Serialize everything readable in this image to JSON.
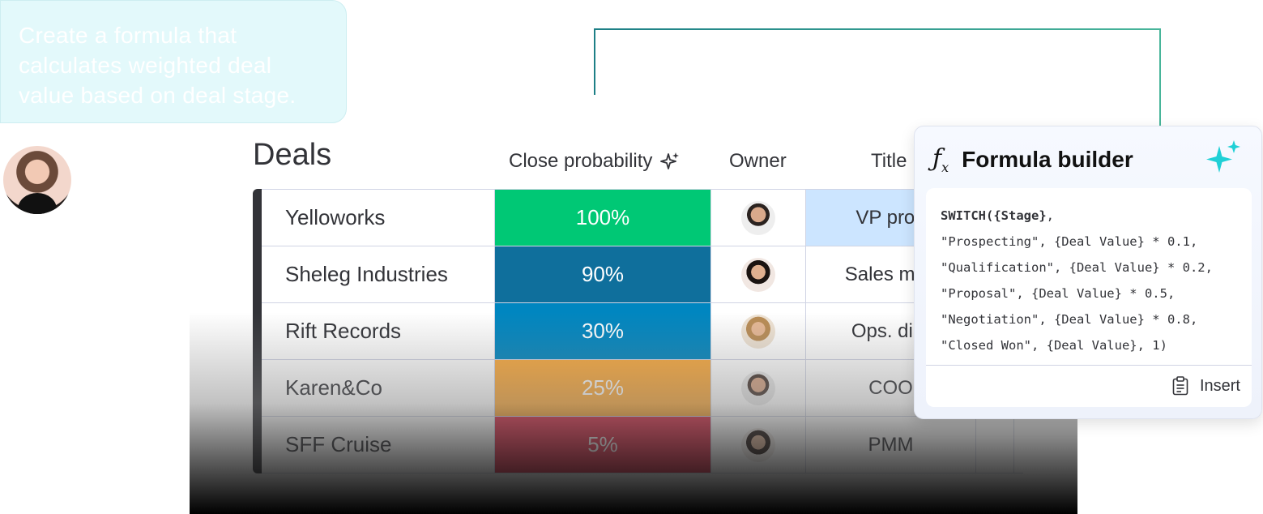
{
  "prompt": {
    "text": "Create a formula that calculates weighted deal value based on deal stage."
  },
  "board": {
    "title": "Deals",
    "columns": {
      "probability": "Close probability",
      "owner": "Owner",
      "title": "Title"
    },
    "rows": [
      {
        "name": "Yelloworks",
        "probability": "100%",
        "prob_color": "#00c875",
        "title": "VP prod",
        "title_bg": "#cce5ff"
      },
      {
        "name": "Sheleg Industries",
        "probability": "90%",
        "prob_color": "#0f6f9c",
        "title": "Sales man",
        "title_bg": "#ffffff"
      },
      {
        "name": "Rift Records",
        "probability": "30%",
        "prob_color": "#0086c0",
        "title": "Ops. dire",
        "title_bg": "#ffffff"
      },
      {
        "name": "Karen&Co",
        "probability": "25%",
        "prob_color": "#fdab3d",
        "title": "COO",
        "title_bg": "#ffffff"
      },
      {
        "name": "SFF Cruise",
        "probability": "5%",
        "prob_color": "#df2f4a",
        "title": "PMM",
        "title_bg": "#ffffff"
      }
    ]
  },
  "formula_builder": {
    "icon": "function-icon",
    "title": "Formula builder",
    "code": {
      "line1_fn": "SWITCH({Stage}",
      "line1_rest": ",",
      "line2": "\"Prospecting\", {Deal Value} * 0.1,",
      "line3": "\"Qualification\", {Deal Value} * 0.2,",
      "line4": "\"Proposal\", {Deal Value} * 0.5,",
      "line5": "\"Negotiation\", {Deal Value} * 0.8,",
      "line6": "\"Closed Won\", {Deal Value}, 1)"
    },
    "insert_label": "Insert",
    "accent": "#00d2d2"
  }
}
